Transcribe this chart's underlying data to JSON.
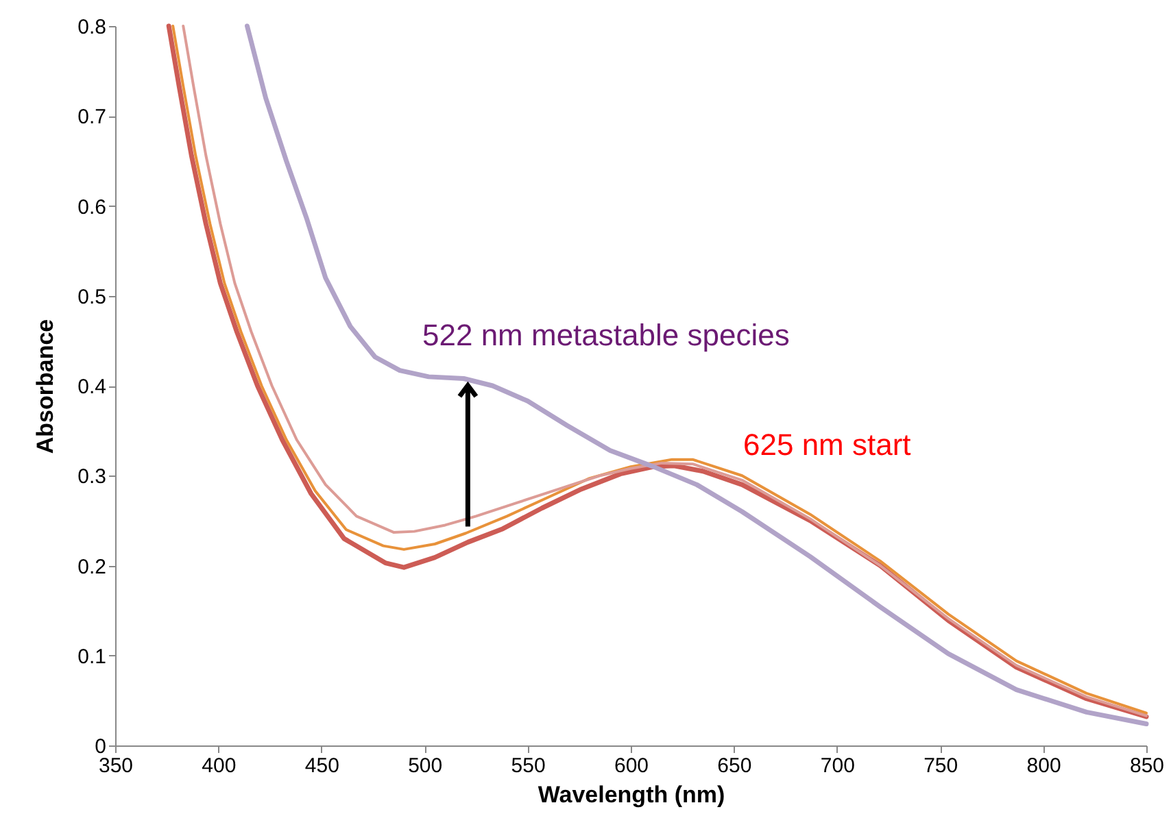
{
  "chart_data": {
    "type": "line",
    "xlabel": "Wavelength (nm)",
    "ylabel": "Absorbance",
    "xlim": [
      350,
      850
    ],
    "xticks": [
      350,
      400,
      450,
      500,
      550,
      600,
      650,
      700,
      750,
      800,
      850
    ],
    "ylim": [
      0,
      0.8
    ],
    "yticks": [
      0,
      0.1,
      0.2,
      0.3,
      0.4,
      0.5,
      0.6,
      0.7,
      0.8
    ],
    "grid": false,
    "series": [
      {
        "color": "#cd5c55",
        "x": [
          376,
          381,
          387,
          394,
          401,
          409,
          419,
          431,
          445,
          461,
          481,
          490,
          505,
          521,
          538,
          557,
          576,
          595,
          611,
          621,
          635,
          654,
          687,
          721,
          754,
          787,
          821,
          850
        ],
        "values": [
          0.8,
          0.733,
          0.656,
          0.58,
          0.514,
          0.46,
          0.4,
          0.34,
          0.28,
          0.23,
          0.203,
          0.198,
          0.209,
          0.226,
          0.241,
          0.264,
          0.285,
          0.302,
          0.31,
          0.311,
          0.305,
          0.29,
          0.25,
          0.2,
          0.139,
          0.087,
          0.052,
          0.032
        ]
      },
      {
        "color": "#e8923a",
        "x": [
          378,
          383,
          389,
          396,
          403,
          411,
          421,
          433,
          447,
          462,
          480,
          490,
          505,
          520,
          540,
          560,
          580,
          600,
          620,
          630,
          654,
          687,
          721,
          754,
          787,
          821,
          850
        ],
        "values": [
          0.8,
          0.733,
          0.656,
          0.58,
          0.514,
          0.46,
          0.4,
          0.34,
          0.283,
          0.24,
          0.222,
          0.218,
          0.224,
          0.236,
          0.255,
          0.276,
          0.297,
          0.31,
          0.318,
          0.318,
          0.3,
          0.257,
          0.205,
          0.146,
          0.094,
          0.058,
          0.036
        ]
      },
      {
        "color": "#dd9c96",
        "x": [
          383,
          388,
          394,
          401,
          408,
          416,
          426,
          438,
          452,
          467,
          485,
          495,
          510,
          525,
          545,
          565,
          585,
          600,
          615,
          630,
          654,
          687,
          721,
          754,
          787,
          821,
          850
        ],
        "values": [
          0.8,
          0.733,
          0.656,
          0.58,
          0.514,
          0.46,
          0.4,
          0.34,
          0.29,
          0.255,
          0.237,
          0.238,
          0.245,
          0.255,
          0.27,
          0.285,
          0.3,
          0.308,
          0.314,
          0.313,
          0.295,
          0.252,
          0.2,
          0.141,
          0.089,
          0.054,
          0.033
        ]
      },
      {
        "color": "#b1a3c8",
        "x": [
          414,
          423,
          433,
          443,
          452,
          464,
          476,
          488,
          502,
          519,
          533,
          550,
          569,
          590,
          611,
          632,
          654,
          687,
          721,
          754,
          787,
          821,
          850
        ],
        "values": [
          0.8,
          0.72,
          0.65,
          0.585,
          0.52,
          0.466,
          0.432,
          0.417,
          0.41,
          0.408,
          0.4,
          0.383,
          0.356,
          0.328,
          0.31,
          0.29,
          0.26,
          0.21,
          0.154,
          0.102,
          0.062,
          0.037,
          0.024
        ]
      }
    ],
    "annotations": [
      {
        "text": "522 nm metastable species",
        "x": 521,
        "y": 0.408
      },
      "625 nm start"
    ]
  }
}
